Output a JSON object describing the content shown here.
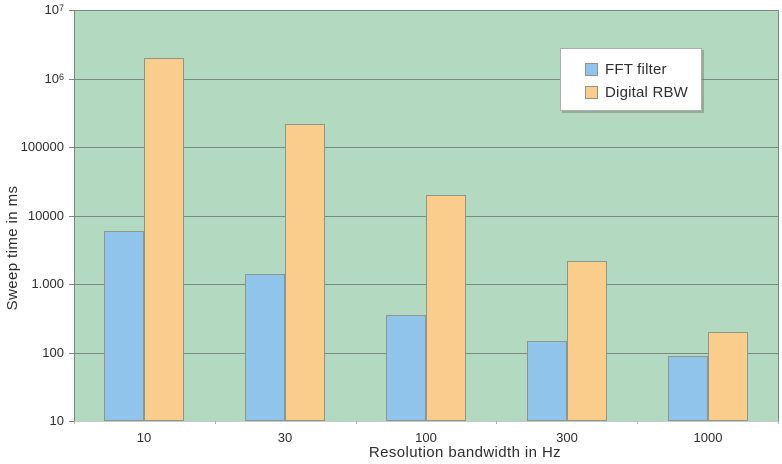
{
  "chart_data": {
    "type": "bar",
    "title": "",
    "xlabel": "Resolution bandwidth in Hz",
    "ylabel": "Sweep time in ms",
    "y_scale": "log",
    "ylim": [
      10,
      10000000
    ],
    "grid": true,
    "legend_position": "top-right",
    "categories": [
      "10",
      "30",
      "100",
      "300",
      "1000"
    ],
    "series": [
      {
        "name": "FFT filter",
        "color": "#90c4eb",
        "values": [
          5900,
          1400,
          350,
          145,
          90
        ]
      },
      {
        "name": "Digital RBW",
        "color": "#facd8c",
        "values": [
          2000000,
          220000,
          20000,
          2200,
          200
        ]
      }
    ],
    "y_ticks": [
      {
        "value": 10000000,
        "label": "10^7"
      },
      {
        "value": 1000000,
        "label": "10^6"
      },
      {
        "value": 100000,
        "label": "100000"
      },
      {
        "value": 10000,
        "label": "10000"
      },
      {
        "value": 1000,
        "label": "1.000"
      },
      {
        "value": 100,
        "label": "100"
      },
      {
        "value": 10,
        "label": "10"
      }
    ],
    "colors": {
      "plot_background": "#b3d9c0",
      "gridline": "#7a8a7e",
      "plot_border_dark": "#7a8a7e",
      "plot_border_bottom": "#c6ccc6",
      "bar_border": "#8c968d"
    }
  }
}
